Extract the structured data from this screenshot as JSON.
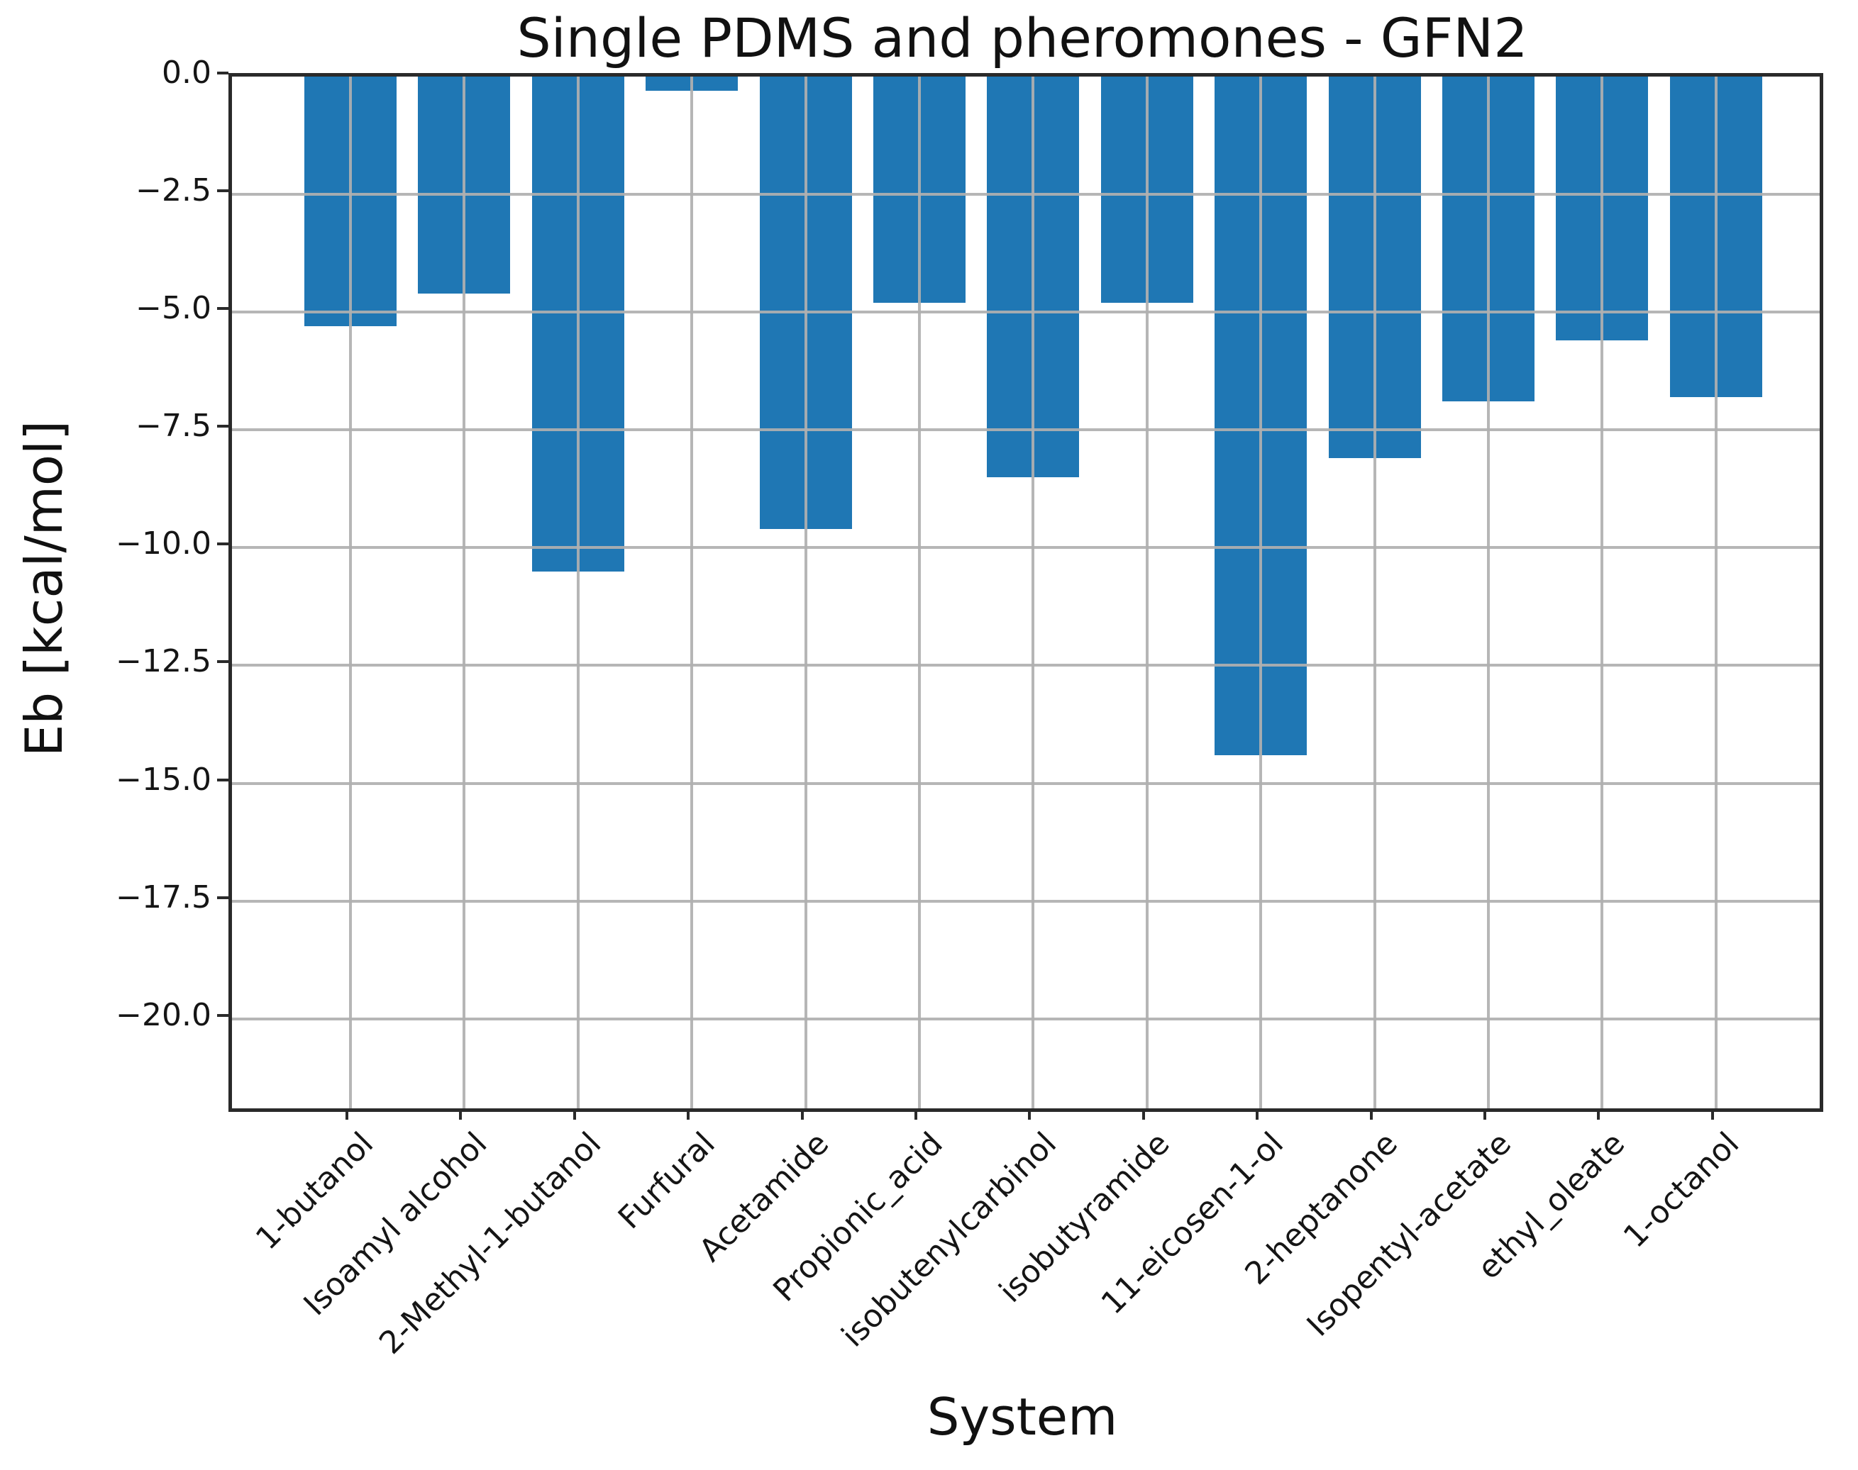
{
  "figure": {
    "background": "#ffffff"
  },
  "chart_data": {
    "type": "bar",
    "title": "Single PDMS and pheromones - GFN2",
    "xlabel": "System",
    "ylabel": "Eb [kcal/mol]",
    "categories": [
      "1-butanol",
      "Isoamyl alcohol",
      "2-Methyl-1-butanol",
      "Furfural",
      "Acetamide",
      "Propionic_acid",
      "isobutenylcarbinol",
      "isobutyramide",
      "11-eicosen-1-ol",
      "2-heptanone",
      "Isopentyl-acetate",
      "ethyl_oleate",
      "1-octanol"
    ],
    "values": [
      -5.3,
      -4.6,
      -10.5,
      -0.3,
      -9.6,
      -4.8,
      -8.5,
      -4.8,
      -14.4,
      -8.1,
      -6.9,
      -5.6,
      -6.8
    ],
    "yticks": [
      0.0,
      -2.5,
      -5.0,
      -7.5,
      -10.0,
      -12.5,
      -15.0,
      -17.5,
      -20.0
    ],
    "ytick_labels": [
      "0.0",
      "−2.5",
      "−5.0",
      "−7.5",
      "−10.0",
      "−12.5",
      "−15.0",
      "−17.5",
      "−20.0"
    ],
    "ylim": [
      -21.9,
      0
    ],
    "grid": true,
    "grid_over_bars": true,
    "legend_position": "none",
    "bar_color": "#1f77b4",
    "grid_color": "#b0b0b0",
    "spine_color": "#2a2a2a",
    "text_color": "#111111"
  }
}
